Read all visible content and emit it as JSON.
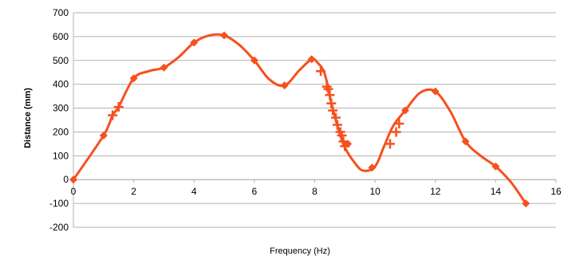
{
  "chart_data": {
    "type": "scatter",
    "title": "",
    "xlabel": "Frequency (Hz)",
    "ylabel": "Distance (mm)",
    "xlim": [
      0,
      16
    ],
    "ylim": [
      -200,
      700
    ],
    "x_ticks": [
      "0",
      "2",
      "4",
      "6",
      "8",
      "10",
      "12",
      "14",
      "16"
    ],
    "y_ticks": [
      "700",
      "600",
      "500",
      "400",
      "300",
      "200",
      "100",
      "0",
      "-100",
      "-200"
    ],
    "grid": "horizontal",
    "legend": "none",
    "series_color": "#f5501e",
    "curve": [
      [
        0,
        0
      ],
      [
        1,
        185
      ],
      [
        1.3,
        270
      ],
      [
        1.5,
        305
      ],
      [
        2,
        425
      ],
      [
        2.5,
        455
      ],
      [
        3,
        470
      ],
      [
        3.5,
        515
      ],
      [
        4,
        575
      ],
      [
        4.5,
        605
      ],
      [
        5,
        605
      ],
      [
        5.5,
        565
      ],
      [
        6,
        500
      ],
      [
        6.5,
        420
      ],
      [
        7,
        395
      ],
      [
        7.5,
        460
      ],
      [
        7.9,
        505
      ],
      [
        8.1,
        490
      ],
      [
        8.3,
        455
      ],
      [
        8.45,
        385
      ],
      [
        8.55,
        320
      ],
      [
        8.7,
        250
      ],
      [
        8.85,
        185
      ],
      [
        9,
        135
      ],
      [
        9.3,
        75
      ],
      [
        9.6,
        38
      ],
      [
        10,
        55
      ],
      [
        10.3,
        140
      ],
      [
        10.6,
        225
      ],
      [
        11,
        290
      ],
      [
        11.5,
        365
      ],
      [
        12,
        370
      ],
      [
        12.5,
        285
      ],
      [
        13,
        160
      ],
      [
        13.5,
        100
      ],
      [
        14,
        55
      ],
      [
        14.5,
        -10
      ],
      [
        15,
        -100
      ]
    ],
    "diamond_markers": [
      [
        0,
        0
      ],
      [
        1,
        185
      ],
      [
        2,
        425
      ],
      [
        3,
        470
      ],
      [
        4,
        575
      ],
      [
        5,
        605
      ],
      [
        6,
        500
      ],
      [
        7,
        395
      ],
      [
        7.9,
        505
      ],
      [
        9.1,
        150
      ],
      [
        9.9,
        50
      ],
      [
        11,
        290
      ],
      [
        12,
        370
      ],
      [
        13,
        160
      ],
      [
        14,
        55
      ],
      [
        15,
        -100
      ]
    ],
    "plus_markers": [
      [
        1.3,
        270
      ],
      [
        1.5,
        305
      ],
      [
        8.2,
        455
      ],
      [
        8.4,
        390
      ],
      [
        8.45,
        380
      ],
      [
        8.5,
        355
      ],
      [
        8.55,
        320
      ],
      [
        8.6,
        290
      ],
      [
        8.7,
        260
      ],
      [
        8.75,
        230
      ],
      [
        8.85,
        200
      ],
      [
        8.9,
        185
      ],
      [
        8.95,
        160
      ],
      [
        9.0,
        140
      ],
      [
        10.5,
        150
      ],
      [
        10.7,
        200
      ],
      [
        10.8,
        235
      ]
    ]
  }
}
